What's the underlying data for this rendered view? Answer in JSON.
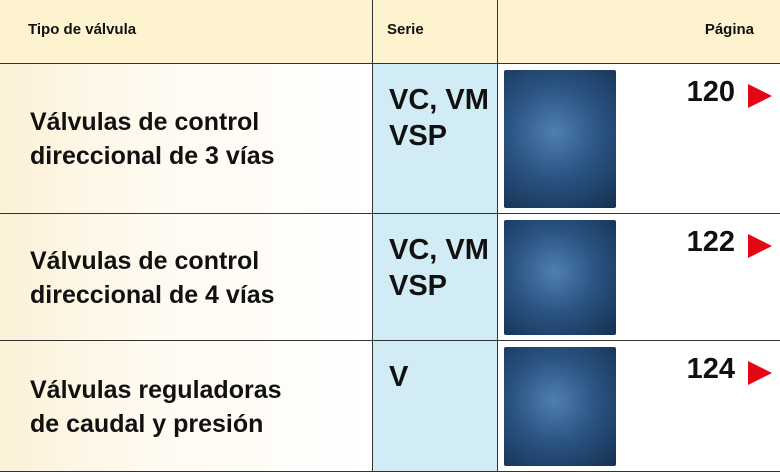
{
  "header": {
    "type": "Tipo de válvula",
    "series": "Serie",
    "page": "Página"
  },
  "rows": [
    {
      "name": [
        "Válvulas de control",
        "direccional de 3 vías"
      ],
      "series": [
        "VC, VM",
        "VSP"
      ],
      "page": "120"
    },
    {
      "name": [
        "Válvulas de control",
        "direccional de 4 vías"
      ],
      "series": [
        "VC, VM",
        "VSP"
      ],
      "page": "122"
    },
    {
      "name": [
        "Válvulas reguladoras",
        "de caudal y presión"
      ],
      "series": [
        "V"
      ],
      "page": "124"
    }
  ]
}
